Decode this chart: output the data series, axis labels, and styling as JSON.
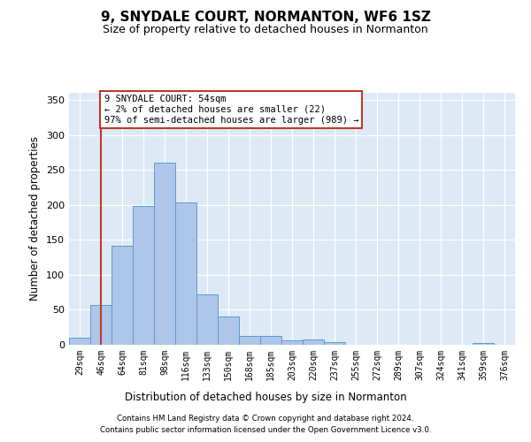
{
  "title1": "9, SNYDALE COURT, NORMANTON, WF6 1SZ",
  "title2": "Size of property relative to detached houses in Normanton",
  "xlabel": "Distribution of detached houses by size in Normanton",
  "ylabel": "Number of detached properties",
  "categories": [
    "29sqm",
    "46sqm",
    "64sqm",
    "81sqm",
    "98sqm",
    "116sqm",
    "133sqm",
    "150sqm",
    "168sqm",
    "185sqm",
    "203sqm",
    "220sqm",
    "237sqm",
    "255sqm",
    "272sqm",
    "289sqm",
    "307sqm",
    "324sqm",
    "341sqm",
    "359sqm",
    "376sqm"
  ],
  "values": [
    10,
    57,
    142,
    198,
    260,
    204,
    72,
    41,
    13,
    13,
    6,
    7,
    4,
    0,
    0,
    0,
    0,
    0,
    0,
    3,
    0
  ],
  "bar_color": "#aec6e8",
  "bar_edge_color": "#5b9bd5",
  "vline_x_index": 1,
  "vline_color": "#c0392b",
  "annotation_line1": "9 SNYDALE COURT: 54sqm",
  "annotation_line2": "← 2% of detached houses are smaller (22)",
  "annotation_line3": "97% of semi-detached houses are larger (989) →",
  "annotation_box_color": "white",
  "annotation_box_edgecolor": "#c0392b",
  "ylim": [
    0,
    360
  ],
  "yticks": [
    0,
    50,
    100,
    150,
    200,
    250,
    300,
    350
  ],
  "axes_bg_color": "#ddeaf6",
  "grid_color": "white",
  "footer1": "Contains HM Land Registry data © Crown copyright and database right 2024.",
  "footer2": "Contains public sector information licensed under the Open Government Licence v3.0."
}
